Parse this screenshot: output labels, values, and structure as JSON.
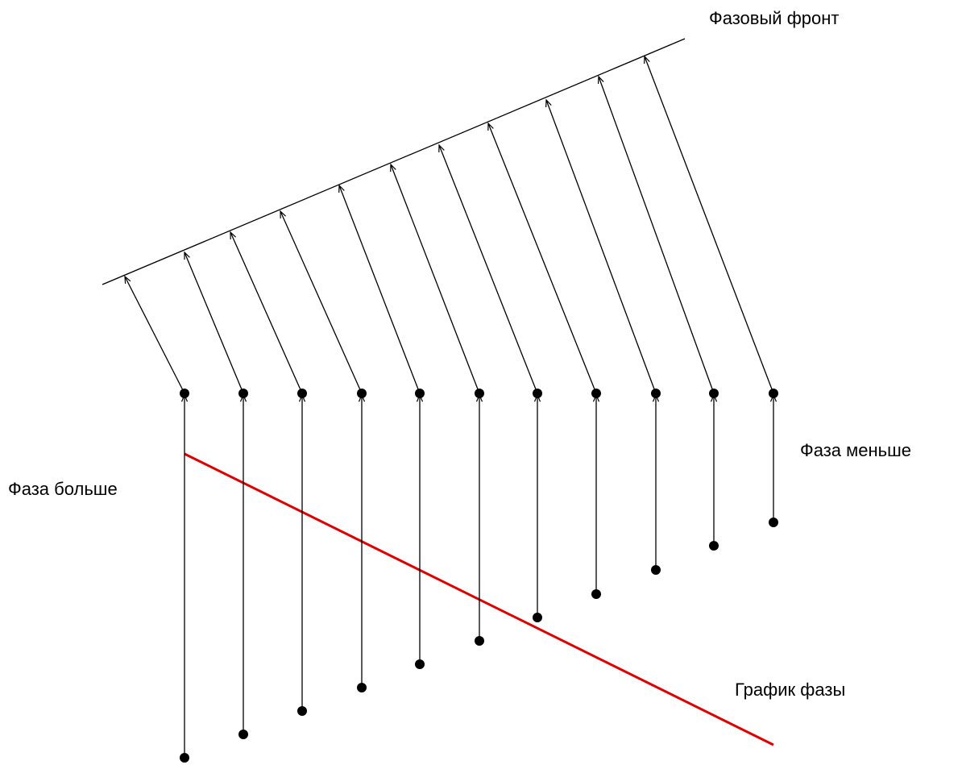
{
  "labels": {
    "phase_front": "Фазовый фронт",
    "phase_less": "Фаза меньше",
    "phase_more": "Фаза больше",
    "phase_graph": "График фазы"
  }
}
